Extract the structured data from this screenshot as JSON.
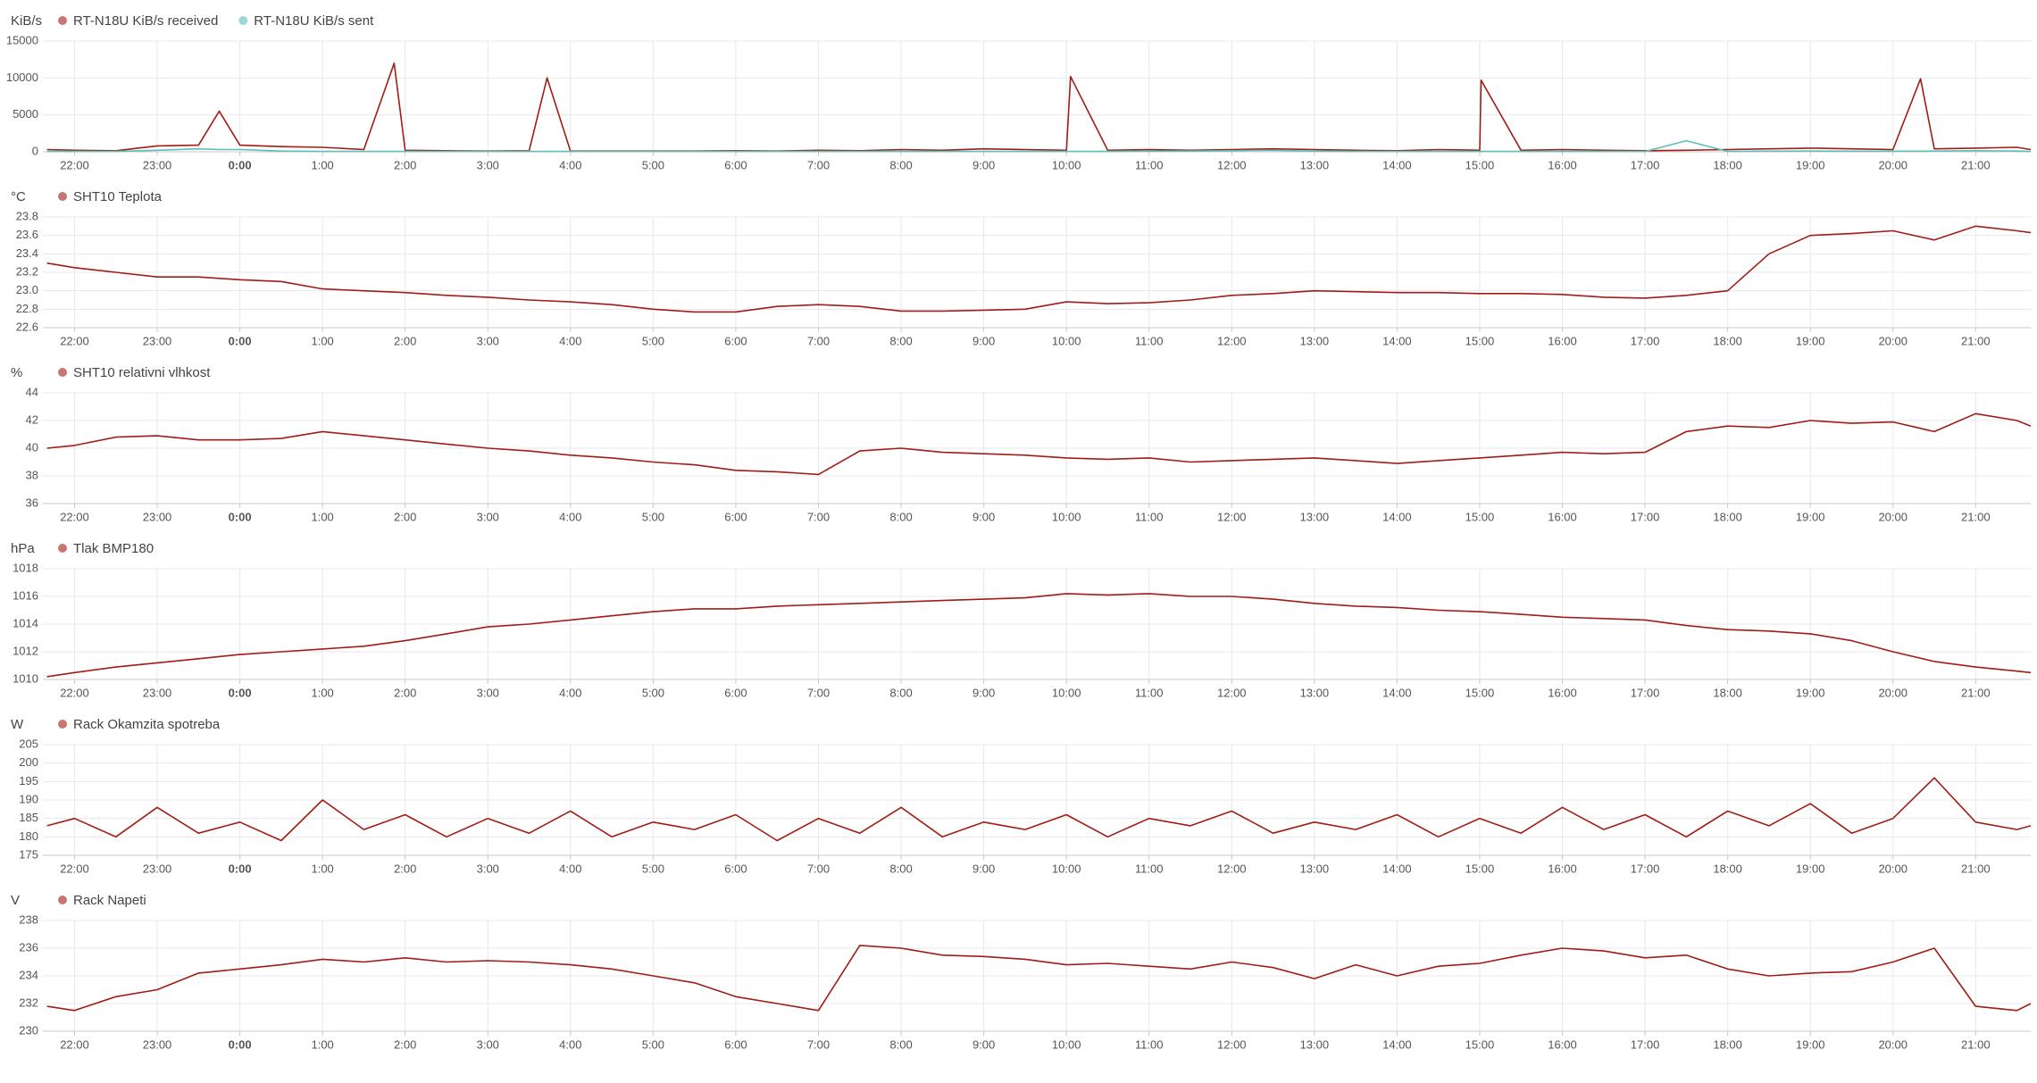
{
  "chart_data": [
    {
      "type": "line",
      "y_label": "KiB/s",
      "x": [
        "21:40",
        "22:00",
        "22:30",
        "23:00",
        "23:30",
        "23:45",
        "0:00",
        "0:30",
        "1:00",
        "1:30",
        "1:52",
        "2:00",
        "2:30",
        "3:00",
        "3:30",
        "3:43",
        "4:00",
        "4:30",
        "5:00",
        "5:30",
        "6:00",
        "6:30",
        "7:00",
        "7:30",
        "8:00",
        "8:30",
        "9:00",
        "9:30",
        "10:00",
        "10:03",
        "10:30",
        "11:00",
        "11:30",
        "12:00",
        "12:30",
        "13:00",
        "13:30",
        "14:00",
        "14:30",
        "15:00",
        "15:01",
        "15:30",
        "16:00",
        "16:30",
        "17:00",
        "17:30",
        "18:00",
        "18:30",
        "19:00",
        "19:30",
        "20:00",
        "20:20",
        "20:30",
        "21:00",
        "21:30",
        "21:40"
      ],
      "series": [
        {
          "name": "RT-N18U KiB/s received",
          "color": "#a11c14",
          "values": [
            300,
            200,
            150,
            800,
            900,
            5500,
            900,
            700,
            600,
            300,
            12000,
            200,
            150,
            100,
            150,
            10000,
            100,
            100,
            100,
            100,
            150,
            100,
            200,
            150,
            300,
            200,
            400,
            300,
            200,
            10200,
            200,
            300,
            200,
            300,
            400,
            300,
            200,
            150,
            300,
            200,
            9700,
            200,
            300,
            200,
            150,
            200,
            300,
            400,
            500,
            400,
            300,
            9900,
            400,
            500,
            600,
            300
          ]
        },
        {
          "name": "RT-N18U KiB/s sent",
          "color": "#5cc0b8",
          "values": [
            50,
            50,
            50,
            200,
            400,
            300,
            300,
            100,
            50,
            50,
            50,
            50,
            50,
            50,
            50,
            50,
            50,
            50,
            50,
            50,
            50,
            50,
            50,
            50,
            50,
            50,
            50,
            50,
            50,
            50,
            50,
            80,
            100,
            150,
            200,
            80,
            50,
            50,
            50,
            50,
            50,
            50,
            50,
            50,
            50,
            1500,
            50,
            80,
            100,
            80,
            80,
            80,
            100,
            150,
            100,
            50
          ]
        }
      ],
      "xlim": [
        "21:37",
        "21:40"
      ],
      "xticks": [
        "22:00",
        "23:00",
        "0:00",
        "1:00",
        "2:00",
        "3:00",
        "4:00",
        "5:00",
        "6:00",
        "7:00",
        "8:00",
        "9:00",
        "10:00",
        "11:00",
        "12:00",
        "13:00",
        "14:00",
        "15:00",
        "16:00",
        "17:00",
        "18:00",
        "19:00",
        "20:00",
        "21:00"
      ],
      "ylim": [
        0,
        15000
      ],
      "yticks": [
        0,
        5000,
        10000,
        15000
      ],
      "grid": true
    },
    {
      "type": "line",
      "y_label": "°C",
      "x": [
        "21:40",
        "22:00",
        "22:30",
        "23:00",
        "23:30",
        "0:00",
        "0:30",
        "1:00",
        "1:30",
        "2:00",
        "2:30",
        "3:00",
        "3:30",
        "4:00",
        "4:30",
        "5:00",
        "5:30",
        "6:00",
        "6:30",
        "7:00",
        "7:30",
        "8:00",
        "8:30",
        "9:00",
        "9:30",
        "10:00",
        "10:30",
        "11:00",
        "11:30",
        "12:00",
        "12:30",
        "13:00",
        "13:30",
        "14:00",
        "14:30",
        "15:00",
        "15:30",
        "16:00",
        "16:30",
        "17:00",
        "17:30",
        "18:00",
        "18:30",
        "19:00",
        "19:30",
        "20:00",
        "20:30",
        "21:00",
        "21:30",
        "21:40"
      ],
      "series": [
        {
          "name": "SHT10 Teplota",
          "color": "#a11c14",
          "values": [
            23.3,
            23.25,
            23.2,
            23.15,
            23.15,
            23.12,
            23.1,
            23.02,
            23.0,
            22.98,
            22.95,
            22.93,
            22.9,
            22.88,
            22.85,
            22.8,
            22.77,
            22.77,
            22.83,
            22.85,
            22.83,
            22.78,
            22.78,
            22.79,
            22.8,
            22.88,
            22.86,
            22.87,
            22.9,
            22.95,
            22.97,
            23.0,
            22.99,
            22.98,
            22.98,
            22.97,
            22.97,
            22.96,
            22.93,
            22.92,
            22.95,
            23.0,
            23.4,
            23.6,
            23.62,
            23.65,
            23.55,
            23.7,
            23.65,
            23.63
          ]
        }
      ],
      "xlim": [
        "21:37",
        "21:40"
      ],
      "xticks": [
        "22:00",
        "23:00",
        "0:00",
        "1:00",
        "2:00",
        "3:00",
        "4:00",
        "5:00",
        "6:00",
        "7:00",
        "8:00",
        "9:00",
        "10:00",
        "11:00",
        "12:00",
        "13:00",
        "14:00",
        "15:00",
        "16:00",
        "17:00",
        "18:00",
        "19:00",
        "20:00",
        "21:00"
      ],
      "ylim": [
        22.6,
        23.8
      ],
      "yticks": [
        22.6,
        22.8,
        {
          "value": 23,
          "label": "23.0"
        },
        23.2,
        23.4,
        23.6,
        23.8
      ],
      "grid": true
    },
    {
      "type": "line",
      "y_label": "%",
      "x": [
        "21:40",
        "22:00",
        "22:30",
        "23:00",
        "23:30",
        "0:00",
        "0:30",
        "1:00",
        "1:30",
        "2:00",
        "2:30",
        "3:00",
        "3:30",
        "4:00",
        "4:30",
        "5:00",
        "5:30",
        "6:00",
        "6:30",
        "7:00",
        "7:30",
        "8:00",
        "8:30",
        "9:00",
        "9:30",
        "10:00",
        "10:30",
        "11:00",
        "11:30",
        "12:00",
        "12:30",
        "13:00",
        "13:30",
        "14:00",
        "14:30",
        "15:00",
        "15:30",
        "16:00",
        "16:30",
        "17:00",
        "17:30",
        "18:00",
        "18:30",
        "19:00",
        "19:30",
        "20:00",
        "20:30",
        "21:00",
        "21:30",
        "21:40"
      ],
      "series": [
        {
          "name": "SHT10 relativni vlhkost",
          "color": "#a11c14",
          "values": [
            40.0,
            40.2,
            40.8,
            40.9,
            40.6,
            40.6,
            40.7,
            41.2,
            40.9,
            40.6,
            40.3,
            40.0,
            39.8,
            39.5,
            39.3,
            39.0,
            38.8,
            38.4,
            38.3,
            38.1,
            39.8,
            40.0,
            39.7,
            39.6,
            39.5,
            39.3,
            39.2,
            39.3,
            39.0,
            39.1,
            39.2,
            39.3,
            39.1,
            38.9,
            39.1,
            39.3,
            39.5,
            39.7,
            39.6,
            39.7,
            41.2,
            41.6,
            41.5,
            42.0,
            41.8,
            41.9,
            41.2,
            42.5,
            42.0,
            41.6
          ]
        }
      ],
      "xlim": [
        "21:37",
        "21:40"
      ],
      "xticks": [
        "22:00",
        "23:00",
        "0:00",
        "1:00",
        "2:00",
        "3:00",
        "4:00",
        "5:00",
        "6:00",
        "7:00",
        "8:00",
        "9:00",
        "10:00",
        "11:00",
        "12:00",
        "13:00",
        "14:00",
        "15:00",
        "16:00",
        "17:00",
        "18:00",
        "19:00",
        "20:00",
        "21:00"
      ],
      "ylim": [
        36,
        44
      ],
      "yticks": [
        36,
        38,
        40,
        42,
        44
      ],
      "grid": true
    },
    {
      "type": "line",
      "y_label": "hPa",
      "x": [
        "21:40",
        "22:00",
        "22:30",
        "23:00",
        "23:30",
        "0:00",
        "0:30",
        "1:00",
        "1:30",
        "2:00",
        "2:30",
        "3:00",
        "3:30",
        "4:00",
        "4:30",
        "5:00",
        "5:30",
        "6:00",
        "6:30",
        "7:00",
        "7:30",
        "8:00",
        "8:30",
        "9:00",
        "9:30",
        "10:00",
        "10:30",
        "11:00",
        "11:30",
        "12:00",
        "12:30",
        "13:00",
        "13:30",
        "14:00",
        "14:30",
        "15:00",
        "15:30",
        "16:00",
        "16:30",
        "17:00",
        "17:30",
        "18:00",
        "18:30",
        "19:00",
        "19:30",
        "20:00",
        "20:30",
        "21:00",
        "21:30",
        "21:40"
      ],
      "series": [
        {
          "name": "Tlak BMP180",
          "color": "#a11c14",
          "values": [
            1010.2,
            1010.5,
            1010.9,
            1011.2,
            1011.5,
            1011.8,
            1012.0,
            1012.2,
            1012.4,
            1012.8,
            1013.3,
            1013.8,
            1014.0,
            1014.3,
            1014.6,
            1014.9,
            1015.1,
            1015.1,
            1015.3,
            1015.4,
            1015.5,
            1015.6,
            1015.7,
            1015.8,
            1015.9,
            1016.2,
            1016.1,
            1016.2,
            1016.0,
            1016.0,
            1015.8,
            1015.5,
            1015.3,
            1015.2,
            1015.0,
            1014.9,
            1014.7,
            1014.5,
            1014.4,
            1014.3,
            1013.9,
            1013.6,
            1013.5,
            1013.3,
            1012.8,
            1012.0,
            1011.3,
            1010.9,
            1010.6,
            1010.5
          ]
        }
      ],
      "xlim": [
        "21:37",
        "21:40"
      ],
      "xticks": [
        "22:00",
        "23:00",
        "0:00",
        "1:00",
        "2:00",
        "3:00",
        "4:00",
        "5:00",
        "6:00",
        "7:00",
        "8:00",
        "9:00",
        "10:00",
        "11:00",
        "12:00",
        "13:00",
        "14:00",
        "15:00",
        "16:00",
        "17:00",
        "18:00",
        "19:00",
        "20:00",
        "21:00"
      ],
      "ylim": [
        1010,
        1018
      ],
      "yticks": [
        1010,
        1012,
        1014,
        1016,
        1018
      ],
      "grid": true
    },
    {
      "type": "line",
      "y_label": "W",
      "x": [
        "21:40",
        "22:00",
        "22:30",
        "23:00",
        "23:30",
        "0:00",
        "0:30",
        "1:00",
        "1:30",
        "2:00",
        "2:30",
        "3:00",
        "3:30",
        "4:00",
        "4:30",
        "5:00",
        "5:30",
        "6:00",
        "6:30",
        "7:00",
        "7:30",
        "8:00",
        "8:30",
        "9:00",
        "9:30",
        "10:00",
        "10:30",
        "11:00",
        "11:30",
        "12:00",
        "12:30",
        "13:00",
        "13:30",
        "14:00",
        "14:30",
        "15:00",
        "15:30",
        "16:00",
        "16:30",
        "17:00",
        "17:30",
        "18:00",
        "18:30",
        "19:00",
        "19:30",
        "20:00",
        "20:30",
        "21:00",
        "21:30",
        "21:40"
      ],
      "series": [
        {
          "name": "Rack Okamzita spotreba",
          "color": "#a11c14",
          "values": [
            183,
            185,
            180,
            188,
            181,
            184,
            179,
            190,
            182,
            186,
            180,
            185,
            181,
            187,
            180,
            184,
            182,
            186,
            179,
            185,
            181,
            188,
            180,
            184,
            182,
            186,
            180,
            185,
            183,
            187,
            181,
            184,
            182,
            186,
            180,
            185,
            181,
            188,
            182,
            186,
            180,
            187,
            183,
            189,
            181,
            185,
            196,
            184,
            182,
            183
          ]
        }
      ],
      "xlim": [
        "21:37",
        "21:40"
      ],
      "xticks": [
        "22:00",
        "23:00",
        "0:00",
        "1:00",
        "2:00",
        "3:00",
        "4:00",
        "5:00",
        "6:00",
        "7:00",
        "8:00",
        "9:00",
        "10:00",
        "11:00",
        "12:00",
        "13:00",
        "14:00",
        "15:00",
        "16:00",
        "17:00",
        "18:00",
        "19:00",
        "20:00",
        "21:00"
      ],
      "ylim": [
        175,
        205
      ],
      "yticks": [
        175,
        180,
        185,
        190,
        195,
        200,
        205
      ],
      "grid": true
    },
    {
      "type": "line",
      "y_label": "V",
      "x": [
        "21:40",
        "22:00",
        "22:30",
        "23:00",
        "23:30",
        "0:00",
        "0:30",
        "1:00",
        "1:30",
        "2:00",
        "2:30",
        "3:00",
        "3:30",
        "4:00",
        "4:30",
        "5:00",
        "5:30",
        "6:00",
        "6:30",
        "7:00",
        "7:30",
        "8:00",
        "8:30",
        "9:00",
        "9:30",
        "10:00",
        "10:30",
        "11:00",
        "11:30",
        "12:00",
        "12:30",
        "13:00",
        "13:30",
        "14:00",
        "14:30",
        "15:00",
        "15:30",
        "16:00",
        "16:30",
        "17:00",
        "17:30",
        "18:00",
        "18:30",
        "19:00",
        "19:30",
        "20:00",
        "20:30",
        "21:00",
        "21:30",
        "21:40"
      ],
      "series": [
        {
          "name": "Rack Napeti",
          "color": "#a11c14",
          "values": [
            231.8,
            231.5,
            232.5,
            233.0,
            234.2,
            234.5,
            234.8,
            235.2,
            235.0,
            235.3,
            235.0,
            235.1,
            235.0,
            234.8,
            234.5,
            234.0,
            233.5,
            232.5,
            232.0,
            231.5,
            236.2,
            236.0,
            235.5,
            235.4,
            235.2,
            234.8,
            234.9,
            234.7,
            234.5,
            235.0,
            234.6,
            233.8,
            234.8,
            234.0,
            234.7,
            234.9,
            235.5,
            236.0,
            235.8,
            235.3,
            235.5,
            234.5,
            234.0,
            234.2,
            234.3,
            235.0,
            236.0,
            231.8,
            231.5,
            232.0
          ]
        }
      ],
      "xlim": [
        "21:37",
        "21:40"
      ],
      "xticks": [
        "22:00",
        "23:00",
        "0:00",
        "1:00",
        "2:00",
        "3:00",
        "4:00",
        "5:00",
        "6:00",
        "7:00",
        "8:00",
        "9:00",
        "10:00",
        "11:00",
        "12:00",
        "13:00",
        "14:00",
        "15:00",
        "16:00",
        "17:00",
        "18:00",
        "19:00",
        "20:00",
        "21:00"
      ],
      "ylim": [
        230,
        238
      ],
      "yticks": [
        230,
        232,
        234,
        236,
        238
      ],
      "grid": true
    }
  ]
}
